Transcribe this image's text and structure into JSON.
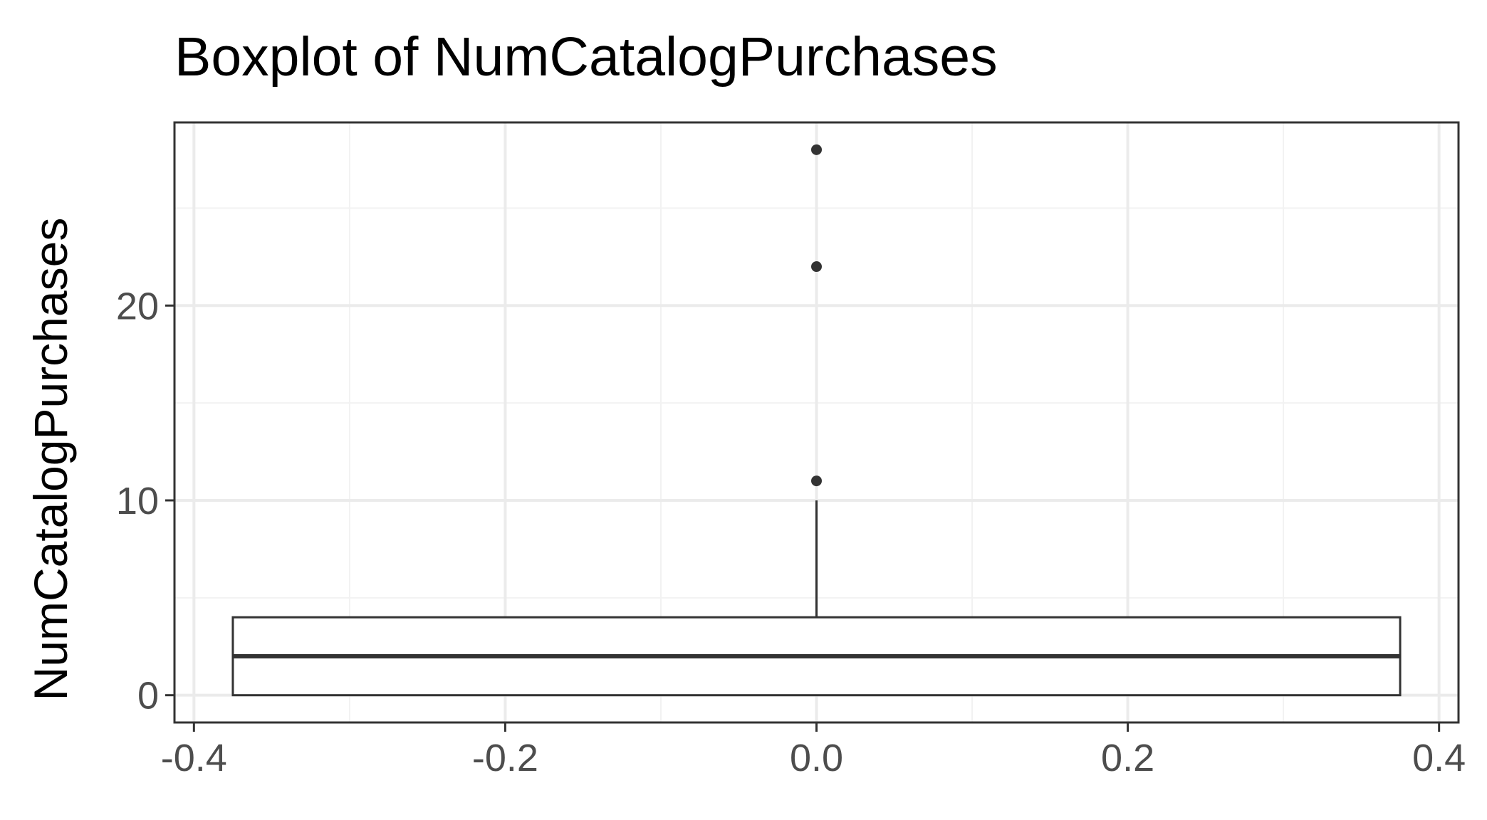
{
  "chart_data": {
    "type": "boxplot",
    "title": "Boxplot of NumCatalogPurchases",
    "xlabel": "",
    "ylabel": "NumCatalogPurchases",
    "xlim": [
      -0.4125,
      0.4125
    ],
    "ylim": [
      -1.4,
      29.4
    ],
    "x_ticks": [
      {
        "value": -0.4,
        "label": "-0.4"
      },
      {
        "value": -0.2,
        "label": "-0.2"
      },
      {
        "value": 0.0,
        "label": "0.0"
      },
      {
        "value": 0.2,
        "label": "0.2"
      },
      {
        "value": 0.4,
        "label": "0.4"
      }
    ],
    "x_minor_ticks": [
      -0.3,
      -0.1,
      0.1,
      0.3
    ],
    "y_ticks": [
      {
        "value": 0,
        "label": "0"
      },
      {
        "value": 10,
        "label": "10"
      },
      {
        "value": 20,
        "label": "20"
      }
    ],
    "y_minor_ticks": [
      5,
      15,
      25
    ],
    "grid": true,
    "box": {
      "x": 0.0,
      "box_halfwidth": 0.375,
      "min": 0,
      "q1": 0,
      "median": 2,
      "q3": 4,
      "whisker_high": 10,
      "outliers": [
        11,
        22,
        28
      ]
    },
    "colors": {
      "background": "#ffffff",
      "grid_major": "#ebebeb",
      "grid_minor": "#f2f2f2",
      "border": "#333333",
      "box_fill": "#ffffff",
      "box_line": "#333333",
      "outlier": "#333333",
      "tick_label": "#4d4d4d"
    }
  }
}
